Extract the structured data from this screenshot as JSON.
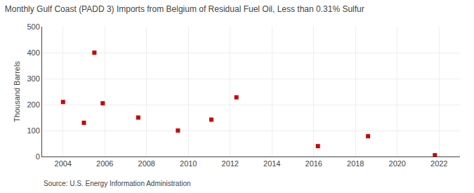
{
  "chart_data": {
    "type": "scatter",
    "title": "Monthly Gulf Coast (PADD 3) Imports from Belgium of Residual Fuel Oil, Less than 0.31% Sulfur",
    "ylabel": "Thousand Barrels",
    "annotations": [
      "Source: U.S. Energy Information Administration"
    ],
    "x": [
      2004.0,
      2005.0,
      2005.5,
      2005.9,
      2007.6,
      2009.5,
      2011.1,
      2012.3,
      2016.2,
      2018.6,
      2021.8
    ],
    "values": [
      210,
      130,
      400,
      205,
      150,
      100,
      142,
      228,
      40,
      78,
      5
    ],
    "color": "#cc0000",
    "marker": "square",
    "xlim": [
      2003,
      2023
    ],
    "xticks": [
      2004,
      2006,
      2008,
      2010,
      2012,
      2014,
      2016,
      2018,
      2020,
      2022
    ],
    "ylim": [
      0,
      500
    ],
    "yticks": [
      0,
      100,
      200,
      300,
      400,
      500
    ],
    "grid": true
  }
}
